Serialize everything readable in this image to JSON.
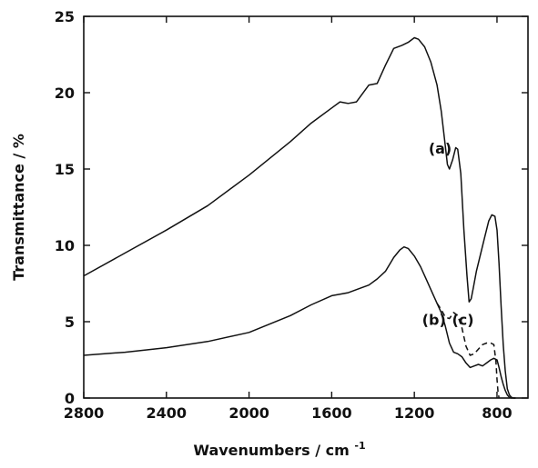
{
  "chart_data": {
    "type": "line",
    "title": "",
    "xlabel": "Wavenumbers / cm",
    "xlabel_superscript": "-1",
    "ylabel": "Transmittance / %",
    "xlim": [
      2800,
      650
    ],
    "x_reversed": true,
    "ylim": [
      0,
      25
    ],
    "x_ticks": [
      2800,
      2400,
      2000,
      1600,
      1200,
      800
    ],
    "y_ticks": [
      0,
      5,
      10,
      15,
      20,
      25
    ],
    "grid": false,
    "legend": "none",
    "series": [
      {
        "name": "(a)",
        "style": "solid",
        "color": "#111111",
        "x": [
          2800,
          2600,
          2400,
          2200,
          2000,
          1800,
          1700,
          1600,
          1560,
          1520,
          1480,
          1420,
          1380,
          1340,
          1300,
          1260,
          1230,
          1200,
          1180,
          1150,
          1120,
          1090,
          1070,
          1050,
          1040,
          1030,
          1015,
          1000,
          990,
          975,
          960,
          945,
          935,
          925,
          915,
          900,
          880,
          860,
          840,
          825,
          810,
          800,
          790,
          780,
          770,
          760,
          750,
          740,
          730,
          720,
          710
        ],
        "y": [
          8.0,
          9.5,
          11.0,
          12.6,
          14.6,
          16.8,
          18.0,
          19.0,
          19.4,
          19.3,
          19.4,
          20.5,
          20.6,
          21.8,
          22.9,
          23.1,
          23.3,
          23.6,
          23.5,
          23.0,
          22.0,
          20.5,
          18.8,
          16.5,
          15.3,
          15.0,
          15.6,
          16.4,
          16.3,
          14.7,
          11.0,
          8.0,
          6.3,
          6.5,
          7.2,
          8.3,
          9.4,
          10.5,
          11.6,
          12.0,
          11.9,
          11.0,
          8.8,
          6.0,
          3.5,
          1.8,
          0.6,
          0.2,
          0.05,
          0.0,
          0.0
        ]
      },
      {
        "name": "(b)",
        "style": "solid",
        "color": "#111111",
        "x": [
          2800,
          2600,
          2400,
          2200,
          2000,
          1800,
          1700,
          1600,
          1560,
          1520,
          1480,
          1420,
          1380,
          1340,
          1300,
          1270,
          1250,
          1230,
          1200,
          1170,
          1140,
          1110,
          1090,
          1070,
          1050,
          1030,
          1010,
          990,
          970,
          950,
          930,
          910,
          890,
          870,
          850,
          830,
          815,
          800,
          790,
          780,
          770,
          760,
          750,
          740,
          730,
          720,
          710
        ],
        "y": [
          2.8,
          3.0,
          3.3,
          3.7,
          4.3,
          5.4,
          6.1,
          6.7,
          6.8,
          6.9,
          7.1,
          7.4,
          7.8,
          8.3,
          9.2,
          9.7,
          9.9,
          9.8,
          9.3,
          8.6,
          7.7,
          6.8,
          6.2,
          5.6,
          4.7,
          3.6,
          3.0,
          2.9,
          2.7,
          2.3,
          2.0,
          2.1,
          2.2,
          2.1,
          2.3,
          2.5,
          2.6,
          2.5,
          2.0,
          1.4,
          0.9,
          0.5,
          0.2,
          0.05,
          0.0,
          0.0,
          0.0
        ]
      },
      {
        "name": "(c)",
        "style": "dashed",
        "color": "#111111",
        "x": [
          1090,
          1070,
          1050,
          1030,
          1010,
          990,
          970,
          950,
          930,
          910,
          890,
          870,
          850,
          830,
          815,
          805,
          800,
          795,
          790
        ],
        "y": [
          6.2,
          5.8,
          5.3,
          5.2,
          5.6,
          5.4,
          4.6,
          3.4,
          2.8,
          2.9,
          3.2,
          3.5,
          3.6,
          3.6,
          3.5,
          2.4,
          1.2,
          0.4,
          0.0
        ]
      }
    ],
    "annotations": [
      {
        "text": "(a)",
        "x": 1075,
        "y": 16.0
      },
      {
        "text": "(b)",
        "x": 1105,
        "y": 4.8
      },
      {
        "text": "(c)",
        "x": 965,
        "y": 4.8
      }
    ]
  }
}
